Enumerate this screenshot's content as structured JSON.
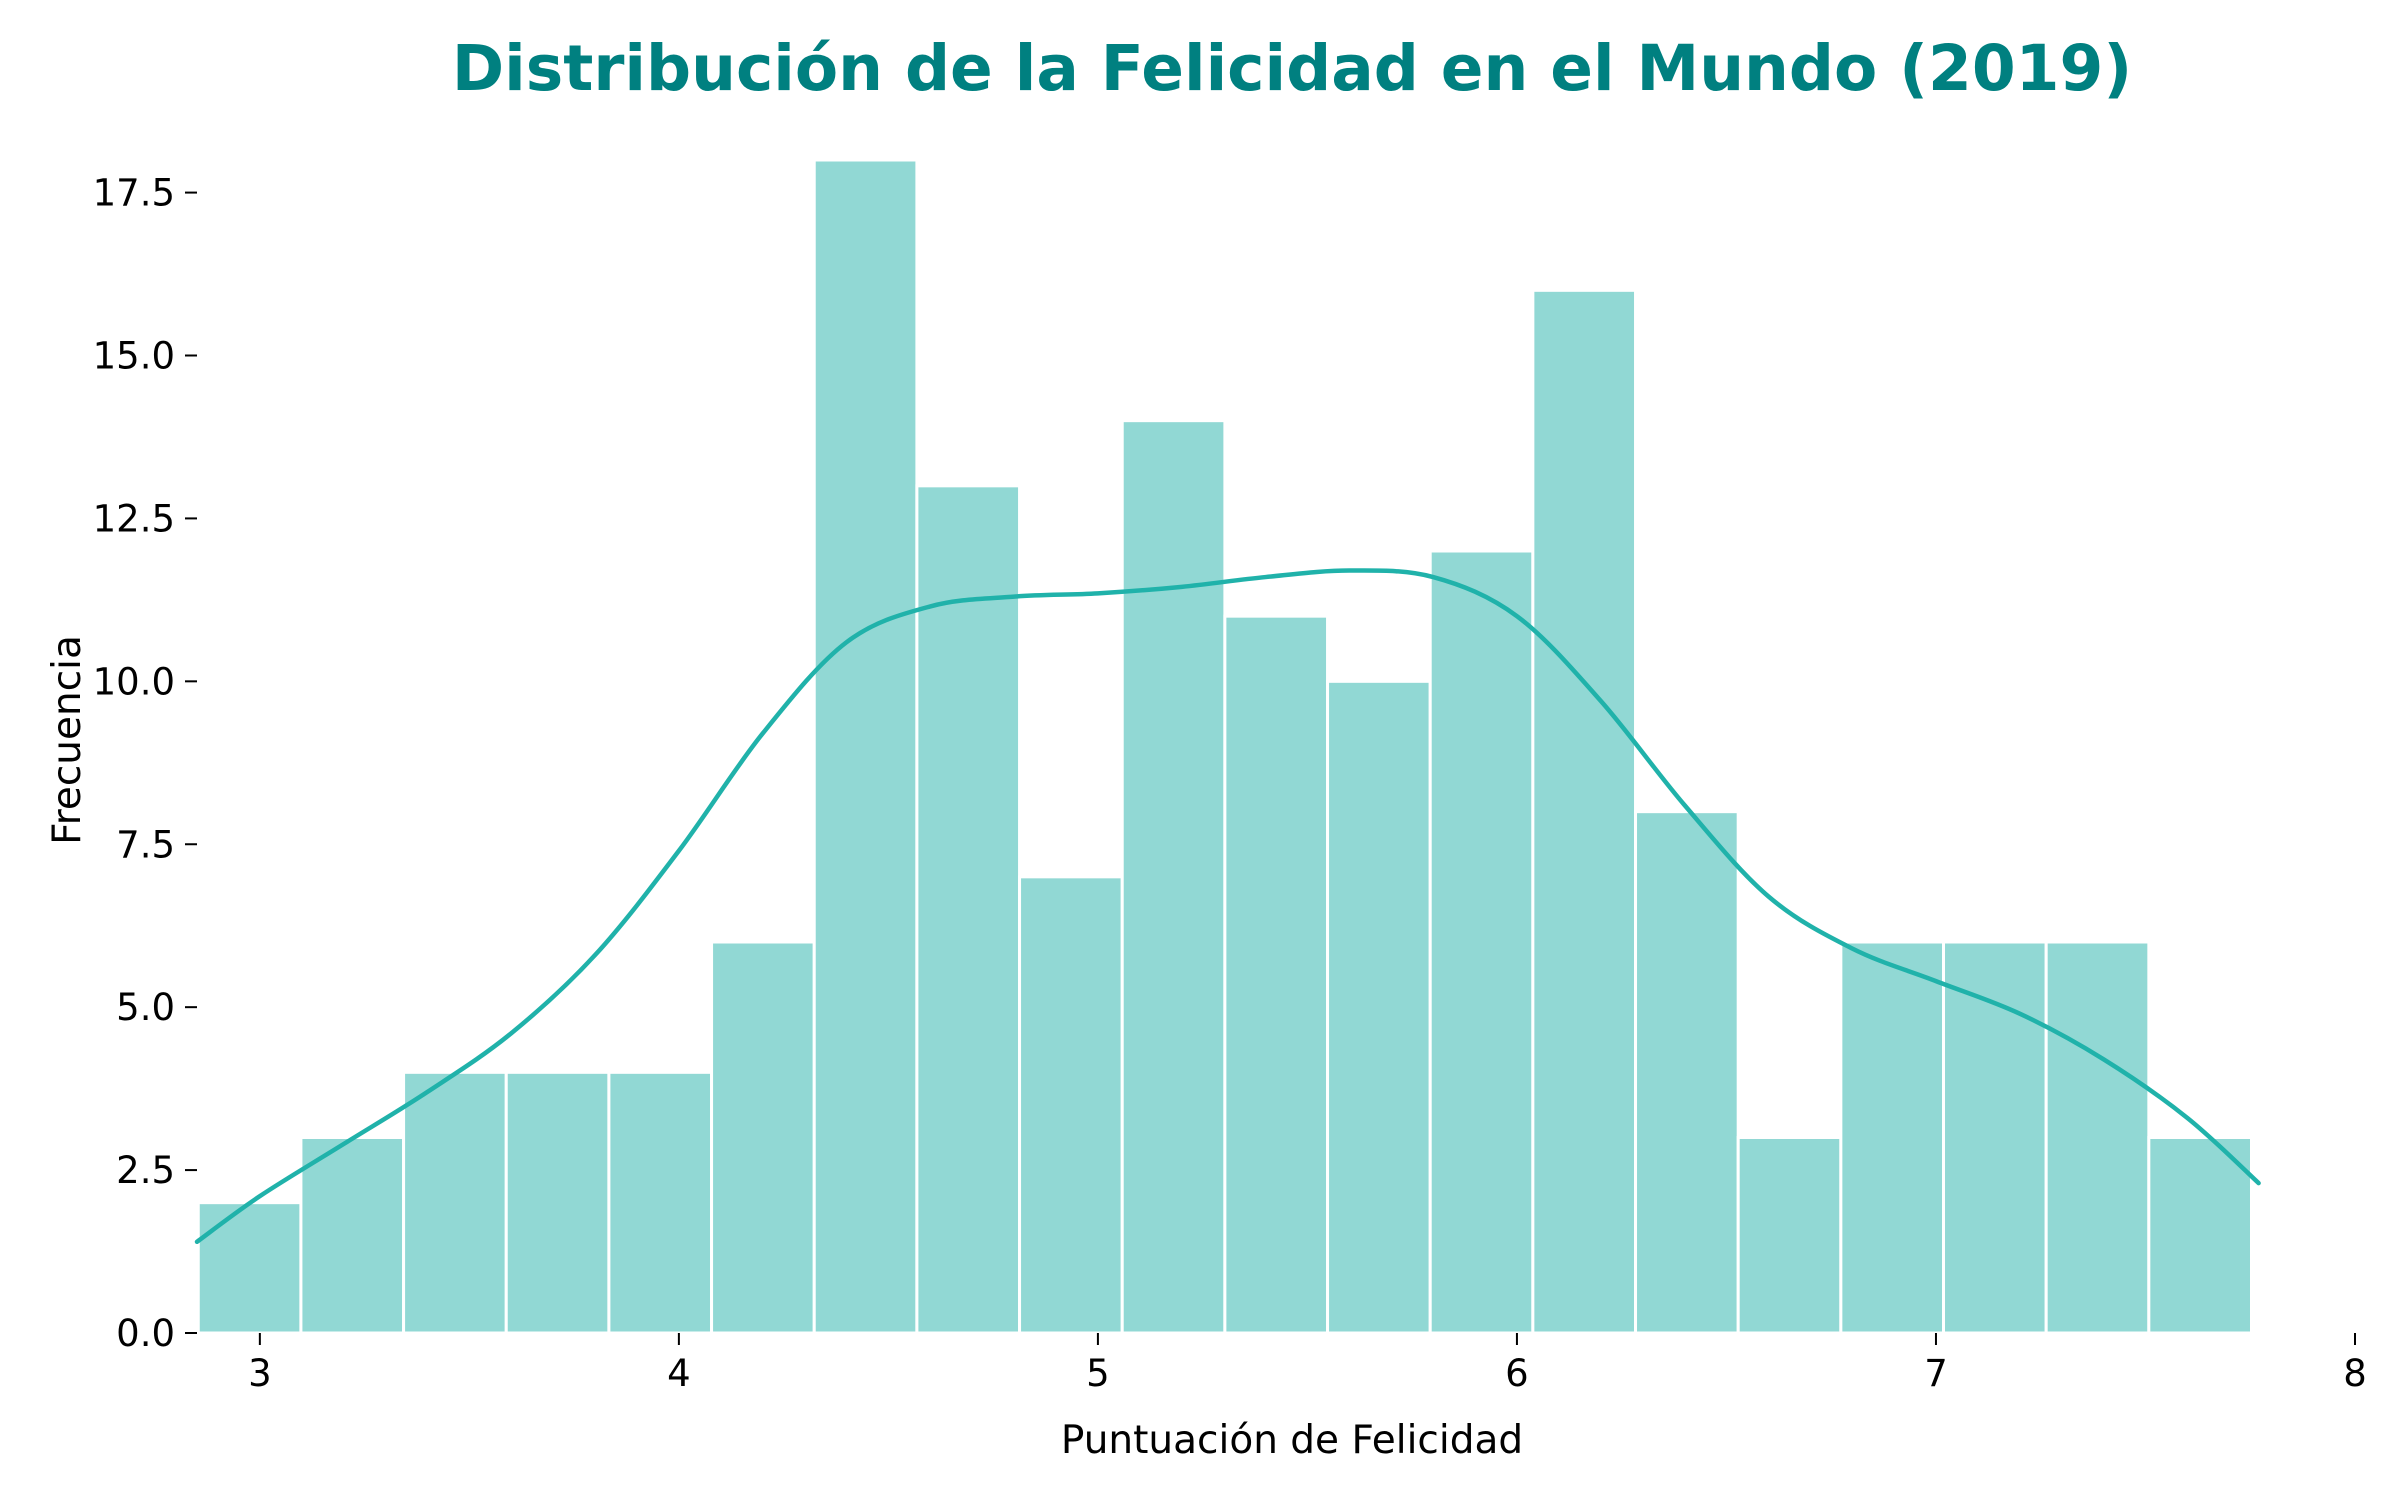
{
  "chart_data": {
    "type": "bar",
    "title": "Distribución de la Felicidad en el Mundo (2019)",
    "xlabel": "Puntuación de Felicidad",
    "ylabel": "Frecuencia",
    "xlim": [
      2.85,
      8.0
    ],
    "ylim": [
      0,
      18
    ],
    "x_ticks": [
      3,
      4,
      5,
      6,
      7,
      8
    ],
    "x_tick_labels": [
      "3",
      "4",
      "5",
      "6",
      "7",
      "8"
    ],
    "y_ticks": [
      0,
      2.5,
      5,
      7.5,
      10,
      12.5,
      15,
      17.5
    ],
    "y_tick_labels": [
      "0.0",
      "2.5",
      "5.0",
      "7.5",
      "10.0",
      "12.5",
      "15.0",
      "17.5"
    ],
    "bin_edges": [
      2.853,
      3.098,
      3.343,
      3.588,
      3.833,
      4.078,
      4.323,
      4.568,
      4.813,
      5.058,
      5.303,
      5.548,
      5.793,
      6.038,
      6.283,
      6.528,
      6.773,
      7.018,
      7.263,
      7.508,
      7.753
    ],
    "values": [
      2,
      3,
      4,
      4,
      4,
      6,
      18,
      13,
      7,
      14,
      11,
      10,
      12,
      16,
      8,
      3,
      6,
      6,
      6,
      3
    ],
    "kde": {
      "x": [
        2.85,
        3.0,
        3.2,
        3.4,
        3.6,
        3.8,
        4.0,
        4.2,
        4.4,
        4.6,
        4.8,
        5.0,
        5.2,
        5.4,
        5.6,
        5.8,
        6.0,
        6.2,
        6.4,
        6.6,
        6.8,
        7.0,
        7.2,
        7.4,
        7.6,
        7.77
      ],
      "y": [
        1.4,
        2.1,
        2.9,
        3.7,
        4.6,
        5.8,
        7.4,
        9.2,
        10.6,
        11.15,
        11.3,
        11.35,
        11.45,
        11.6,
        11.7,
        11.6,
        11.0,
        9.7,
        8.1,
        6.7,
        5.9,
        5.4,
        4.9,
        4.2,
        3.3,
        2.3
      ]
    },
    "grid": false,
    "legend": "none",
    "colors": {
      "bar_fill": "#91d8d4",
      "bar_edge": "#ffffff",
      "kde_line": "#20b2aa",
      "title": "#008080",
      "axis": "#000000"
    }
  }
}
